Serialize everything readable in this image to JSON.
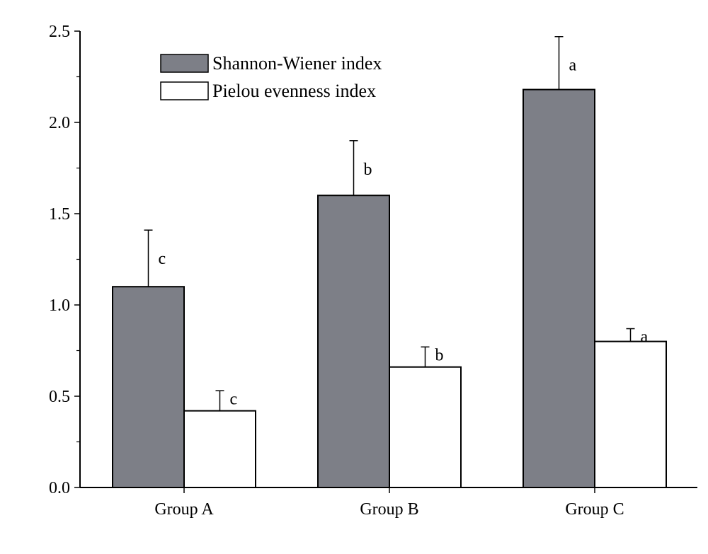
{
  "chart_data": {
    "type": "bar",
    "categories": [
      "Group A",
      "Group B",
      "Group C"
    ],
    "series": [
      {
        "name": "Shannon-Wiener index",
        "values": [
          1.1,
          1.6,
          2.18
        ],
        "errors": [
          0.31,
          0.3,
          0.29
        ],
        "letters": [
          "c",
          "b",
          "a"
        ],
        "color": "#7d7f87"
      },
      {
        "name": "Pielou evenness index",
        "values": [
          0.42,
          0.66,
          0.8
        ],
        "errors": [
          0.11,
          0.11,
          0.07
        ],
        "letters": [
          "c",
          "b",
          "a"
        ],
        "color": "#ffffff"
      }
    ],
    "ylim": [
      0,
      2.5
    ],
    "yticks": [
      "0.0",
      "0.5",
      "1.0",
      "1.5",
      "2.0",
      "2.5"
    ],
    "grid": false,
    "legend_position": "top-left"
  }
}
